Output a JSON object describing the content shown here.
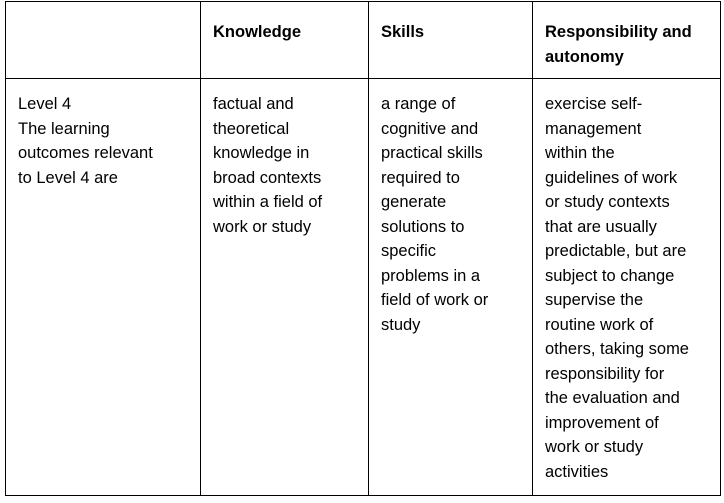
{
  "table": {
    "headers": [
      "",
      "Knowledge",
      "Skills",
      "Responsibility and autonomy"
    ],
    "header_lines": [
      [],
      [
        "Knowledge"
      ],
      [
        "Skills"
      ],
      [
        "Responsibility and",
        "autonomy"
      ]
    ],
    "row": {
      "level": [
        "Level 4",
        "The learning",
        "outcomes relevant",
        "to Level 4 are"
      ],
      "knowledge": [
        "factual and",
        "theoretical",
        "knowledge in",
        "broad contexts",
        "within a field of",
        "work or study"
      ],
      "skills": [
        "a range of",
        "cognitive and",
        "practical skills",
        "required to",
        "generate",
        "solutions to",
        "specific",
        "problems in a",
        "field of work or",
        "study"
      ],
      "responsibility": [
        "exercise self-",
        "management",
        "within the",
        "guidelines of work",
        "or study contexts",
        "that are usually",
        "predictable, but are",
        "subject to change",
        "supervise the",
        "routine work of",
        "others, taking some",
        "responsibility for",
        "the evaluation and",
        "improvement of",
        "work or study",
        "activities"
      ]
    }
  }
}
